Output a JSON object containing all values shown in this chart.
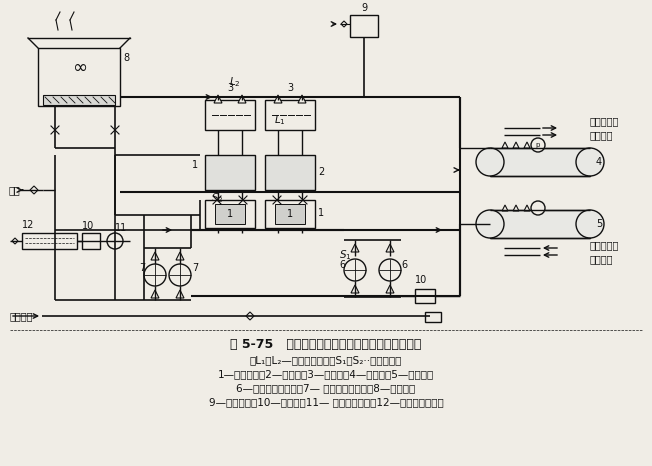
{
  "title_line": "图 5-75   空调冷冻水、冷却水循环系统工艺流程图",
  "subtitle_line": "（L₁、L₂—冷冻供回水管；S₁、S₂··冷却水管）",
  "caption_lines": [
    "1—冷水机组；2—冷凝器；3—蒸发器；4—分水器；5—集水器；",
    "6—冷冻水循环水泵；7— 冷却水循环水泵；8—冷却塔；",
    "9—膨胀水箱；10—除污器；11— 电子水处理仪；12—冷却水循环水箱"
  ],
  "bg_color": "#f0ede6",
  "lc": "#111111",
  "fig_width": 6.52,
  "fig_height": 4.66,
  "dpi": 100
}
